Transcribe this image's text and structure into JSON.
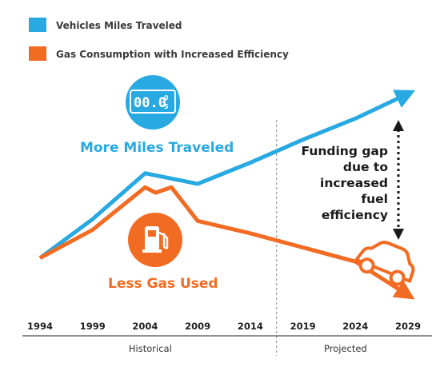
{
  "chart_data": {
    "type": "line",
    "legend": [
      {
        "label": "Vehicles Miles Traveled",
        "color": "#29a9e1"
      },
      {
        "label": "Gas Consumption with Increased Efficiency",
        "color": "#f26b22"
      }
    ],
    "legend_position": "top-left",
    "x_ticks": [
      "1994",
      "1999",
      "2004",
      "2009",
      "2014",
      "2019",
      "2024",
      "2029"
    ],
    "xlim": [
      1994,
      2029
    ],
    "ylim": [
      0,
      100
    ],
    "y_axis_visible": false,
    "grid": false,
    "series": [
      {
        "name": "Vehicles Miles Traveled",
        "color": "#29a9e1",
        "x": [
          1994,
          1999,
          2004,
          2009,
          2014,
          2019,
          2024,
          2029
        ],
        "y": [
          6,
          28,
          54,
          48,
          60,
          73,
          85,
          99
        ]
      },
      {
        "name": "Gas Consumption with Increased Efficiency",
        "color": "#f26b22",
        "x": [
          1994,
          1999,
          2004,
          2005,
          2006.5,
          2009,
          2014,
          2019,
          2024,
          2029
        ],
        "y": [
          6,
          22,
          46,
          43,
          46,
          27,
          20,
          12,
          4,
          -15
        ]
      }
    ],
    "annotations": {
      "more_miles": "More Miles Traveled",
      "less_gas": "Less Gas Used",
      "odometer": "00.0",
      "funding_gap": [
        "Funding gap",
        "due to",
        "increased",
        "fuel",
        "efficiency"
      ]
    },
    "periods": [
      {
        "label": "Historical",
        "from": 1994,
        "to": 2016.5
      },
      {
        "label": "Projected",
        "from": 2016.5,
        "to": 2029
      }
    ],
    "divider_x": 2016.5,
    "colors": {
      "blue": "#29a9e1",
      "orange": "#f26b22",
      "text": "#1f1f1f"
    }
  }
}
